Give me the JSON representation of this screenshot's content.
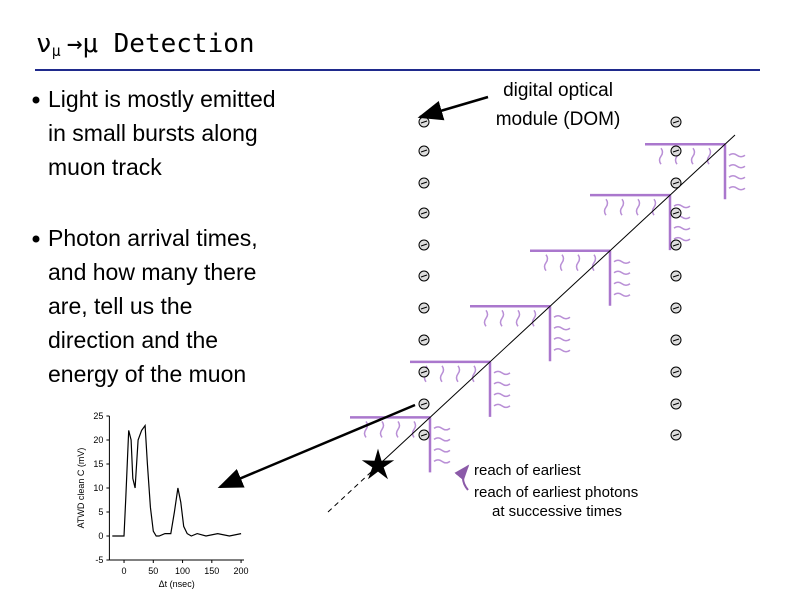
{
  "title": {
    "nu": "ν",
    "sub": "μ",
    "rest": "→μ Detection"
  },
  "bullets": [
    [
      "Light is mostly emitted",
      "in small bursts along",
      "muon track"
    ],
    [
      "Photon arrival times,",
      "and how many there",
      "are, tell us the",
      "direction and the",
      "energy of the muon"
    ]
  ],
  "dom_label": [
    "digital optical",
    "module (DOM)"
  ],
  "annotation": [
    "reach of earliest",
    "reach of earliest photons",
    "at successive times"
  ],
  "inset_chart": {
    "type": "line",
    "xlabel": "Δt (nsec)",
    "ylabel": "ATWD clean C (mV)",
    "x": [
      -20,
      -10,
      0,
      3,
      8,
      12,
      15,
      19,
      24,
      30,
      36,
      40,
      45,
      50,
      55,
      60,
      70,
      80,
      86,
      92,
      97,
      102,
      108,
      115,
      125,
      140,
      160,
      180,
      200
    ],
    "values": [
      0,
      0,
      0,
      8,
      22,
      20,
      12,
      10,
      20,
      22,
      23,
      15,
      6,
      1,
      0,
      0,
      0.5,
      0.5,
      5,
      10,
      7,
      2,
      0.5,
      0,
      0.5,
      0,
      0.5,
      0,
      0.5
    ],
    "color": "#000000",
    "xlim": [
      -25,
      205
    ],
    "ylim": [
      -5,
      25
    ],
    "xticks": [
      0,
      50,
      100,
      150,
      200
    ],
    "yticks": [
      -5,
      0,
      5,
      10,
      15,
      20,
      25
    ]
  }
}
